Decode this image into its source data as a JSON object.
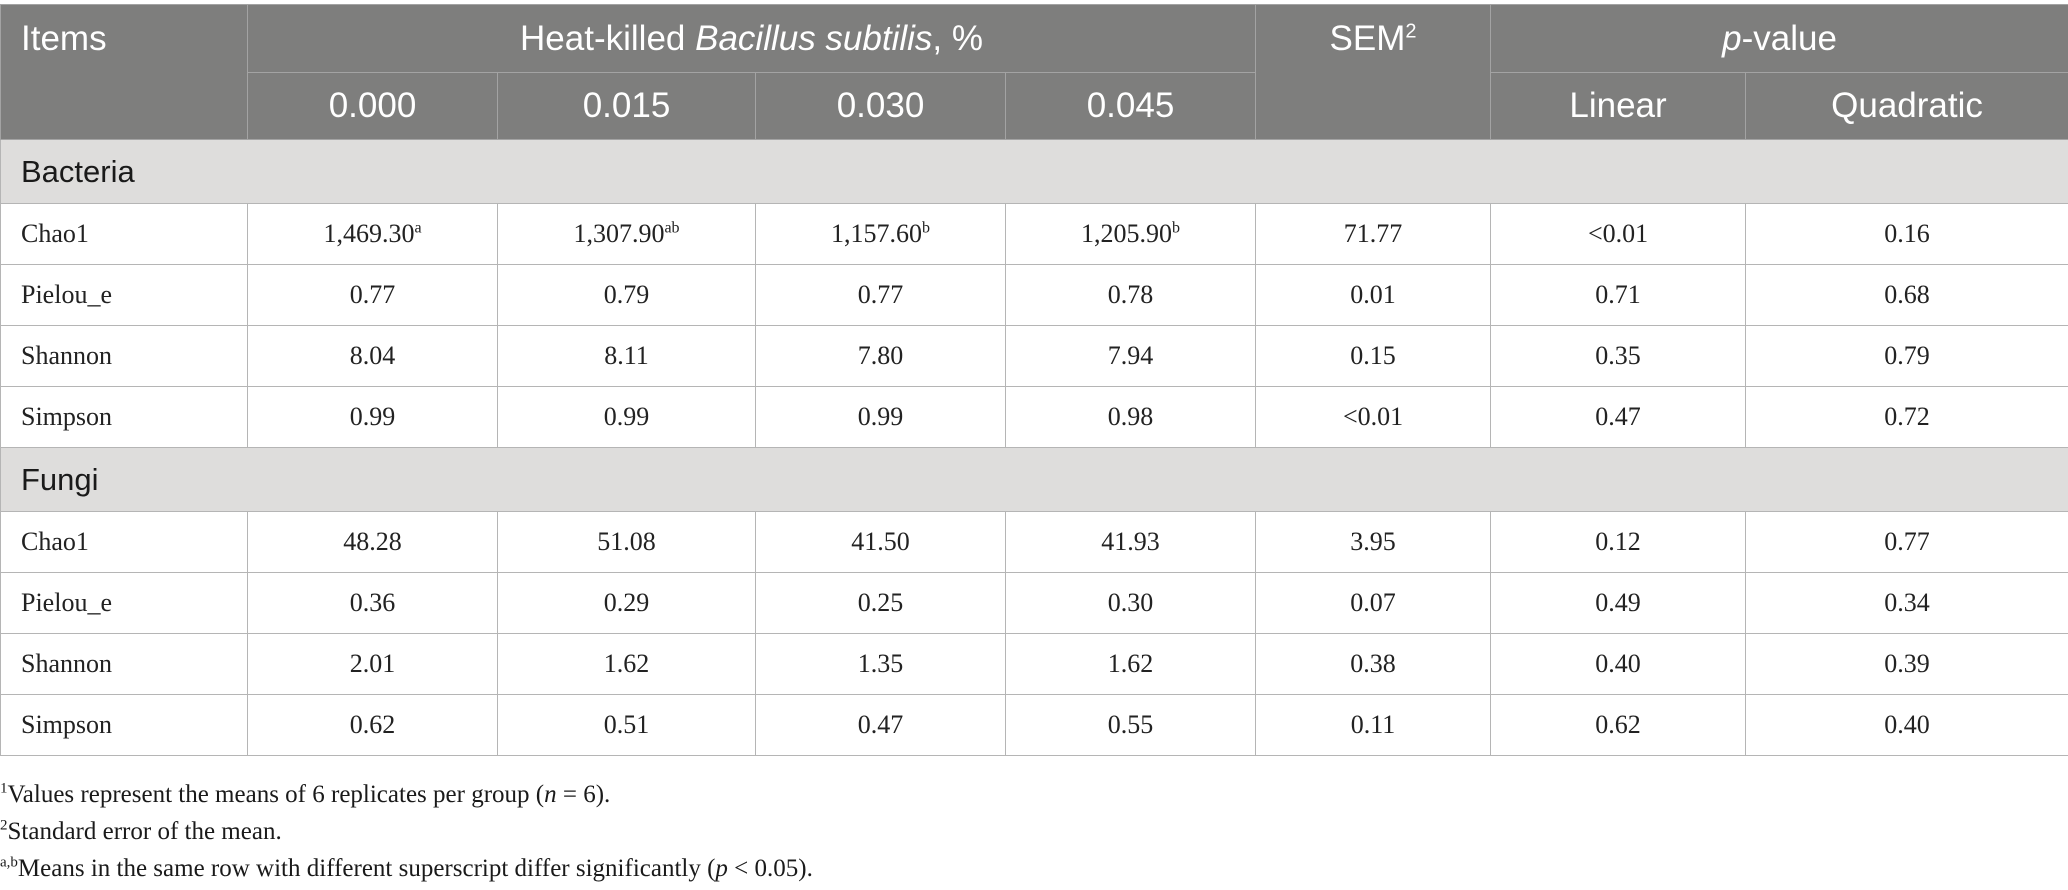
{
  "header": {
    "items": "Items",
    "group_prefix": "Heat-killed ",
    "group_italic": "Bacillus subtilis",
    "group_suffix": ", %",
    "doses": [
      "0.000",
      "0.015",
      "0.030",
      "0.045"
    ],
    "sem": "SEM",
    "sem_sup": "2",
    "pvalue_italic": "p",
    "pvalue_rest": "-value",
    "linear": "Linear",
    "quadratic": "Quadratic"
  },
  "sections": [
    {
      "title": "Bacteria",
      "rows": [
        {
          "label": "Chao1",
          "values": [
            "1,469.30",
            "1,307.90",
            "1,157.60",
            "1,205.90"
          ],
          "sups": [
            "a",
            "ab",
            "b",
            "b"
          ],
          "sem": "71.77",
          "linear": "<0.01",
          "quadratic": "0.16"
        },
        {
          "label": "Pielou_e",
          "values": [
            "0.77",
            "0.79",
            "0.77",
            "0.78"
          ],
          "sups": [
            "",
            "",
            "",
            ""
          ],
          "sem": "0.01",
          "linear": "0.71",
          "quadratic": "0.68"
        },
        {
          "label": "Shannon",
          "values": [
            "8.04",
            "8.11",
            "7.80",
            "7.94"
          ],
          "sups": [
            "",
            "",
            "",
            ""
          ],
          "sem": "0.15",
          "linear": "0.35",
          "quadratic": "0.79"
        },
        {
          "label": "Simpson",
          "values": [
            "0.99",
            "0.99",
            "0.99",
            "0.98"
          ],
          "sups": [
            "",
            "",
            "",
            ""
          ],
          "sem": "<0.01",
          "linear": "0.47",
          "quadratic": "0.72"
        }
      ]
    },
    {
      "title": "Fungi",
      "rows": [
        {
          "label": "Chao1",
          "values": [
            "48.28",
            "51.08",
            "41.50",
            "41.93"
          ],
          "sups": [
            "",
            "",
            "",
            ""
          ],
          "sem": "3.95",
          "linear": "0.12",
          "quadratic": "0.77"
        },
        {
          "label": "Pielou_e",
          "values": [
            "0.36",
            "0.29",
            "0.25",
            "0.30"
          ],
          "sups": [
            "",
            "",
            "",
            ""
          ],
          "sem": "0.07",
          "linear": "0.49",
          "quadratic": "0.34"
        },
        {
          "label": "Shannon",
          "values": [
            "2.01",
            "1.62",
            "1.35",
            "1.62"
          ],
          "sups": [
            "",
            "",
            "",
            ""
          ],
          "sem": "0.38",
          "linear": "0.40",
          "quadratic": "0.39"
        },
        {
          "label": "Simpson",
          "values": [
            "0.62",
            "0.51",
            "0.47",
            "0.55"
          ],
          "sups": [
            "",
            "",
            "",
            ""
          ],
          "sem": "0.11",
          "linear": "0.62",
          "quadratic": "0.40"
        }
      ]
    }
  ],
  "footnotes": [
    {
      "sup": "1",
      "parts": [
        {
          "text": "Values represent the means of 6 replicates per group (",
          "italic": false
        },
        {
          "text": "n",
          "italic": true
        },
        {
          "text": " = 6).",
          "italic": false
        }
      ]
    },
    {
      "sup": "2",
      "parts": [
        {
          "text": "Standard error of the mean.",
          "italic": false
        }
      ]
    },
    {
      "sup": "a,b",
      "parts": [
        {
          "text": "Means in the same row with different superscript differ significantly (",
          "italic": false
        },
        {
          "text": "p",
          "italic": true
        },
        {
          "text": " < 0.05).",
          "italic": false
        }
      ]
    }
  ]
}
